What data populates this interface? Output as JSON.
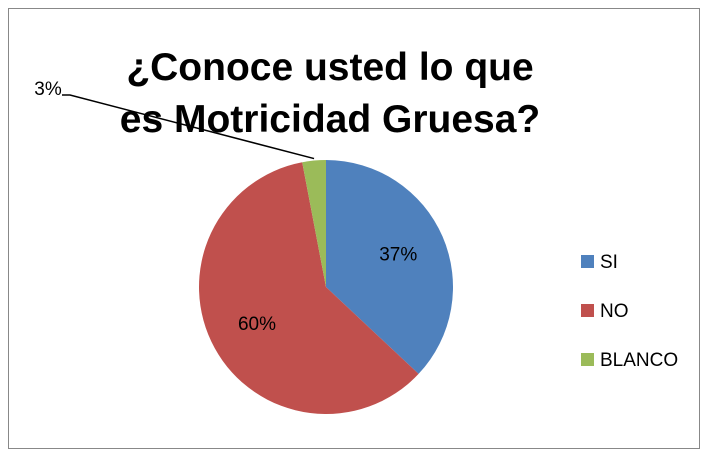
{
  "chart_data": {
    "type": "pie",
    "title": "¿Conoce usted lo que es Motricidad Gruesa?",
    "categories": [
      "SI",
      "NO",
      "BLANCO"
    ],
    "values": [
      37,
      60,
      3
    ],
    "value_labels": [
      "37%",
      "60%",
      "3%"
    ],
    "colors": [
      "#4f81bd",
      "#c0504d",
      "#9bbb59"
    ],
    "legend": "right"
  }
}
